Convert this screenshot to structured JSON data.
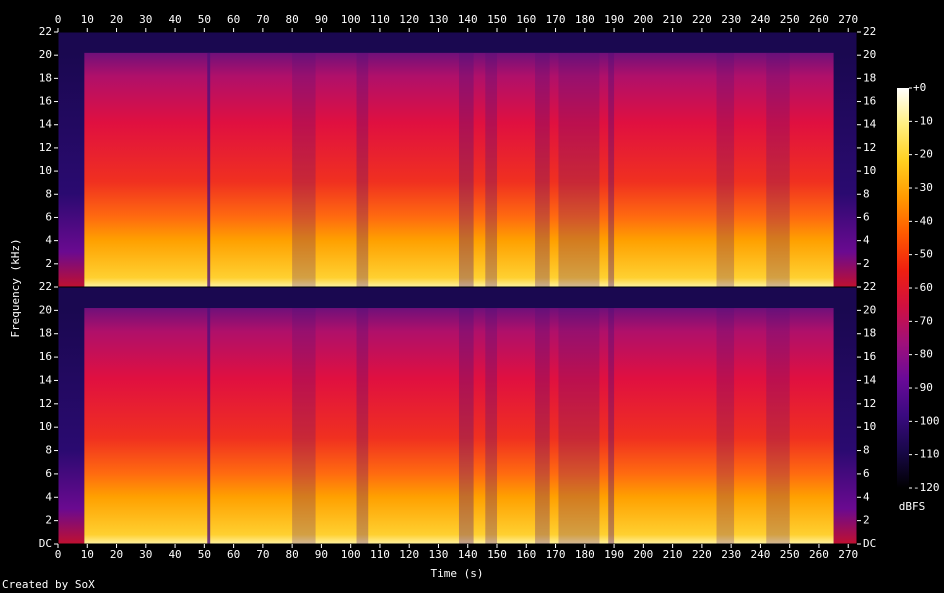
{
  "chart_data": {
    "type": "spectrogram",
    "x_label": "Time (s)",
    "y_label": "Frequency (kHz)",
    "credit": "Created by SoX",
    "xlim": [
      0,
      273
    ],
    "xticks": [
      0,
      10,
      20,
      30,
      40,
      50,
      60,
      70,
      80,
      90,
      100,
      110,
      120,
      130,
      140,
      150,
      160,
      170,
      180,
      190,
      200,
      210,
      220,
      230,
      240,
      250,
      260,
      270
    ],
    "channels": [
      {
        "ylim": [
          0,
          22
        ],
        "yticks": [
          2,
          4,
          6,
          8,
          10,
          12,
          14,
          16,
          18,
          20,
          22
        ]
      },
      {
        "ylim": [
          0,
          22
        ],
        "yticks": [
          {
            "value": 0,
            "label": "DC"
          },
          2,
          4,
          6,
          8,
          10,
          12,
          14,
          16,
          18,
          20,
          22
        ]
      }
    ],
    "colorbar": {
      "label": "dBFS",
      "lim": [
        -120,
        0
      ],
      "ticks": [
        {
          "value": 0,
          "label": "+0"
        },
        -10,
        -20,
        -30,
        -40,
        -50,
        -60,
        -70,
        -80,
        -90,
        -100,
        -110,
        -120
      ],
      "colormap": [
        "#000000",
        "#180848",
        "#3a0a80",
        "#6a0a98",
        "#a0107a",
        "#d01040",
        "#f02010",
        "#ff5a00",
        "#ff9a00",
        "#ffd020",
        "#fff080",
        "#ffffff"
      ]
    }
  }
}
